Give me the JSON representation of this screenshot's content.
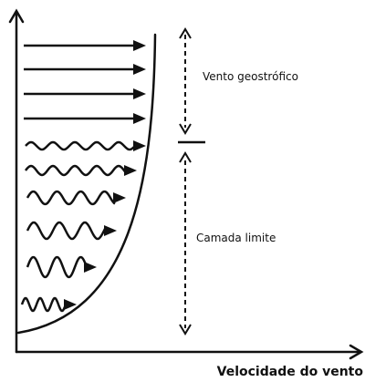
{
  "labels": {
    "geostrophic": "Vento geostrófico",
    "boundary": "Camada limite",
    "x_axis": "Velocidade do vento"
  }
}
